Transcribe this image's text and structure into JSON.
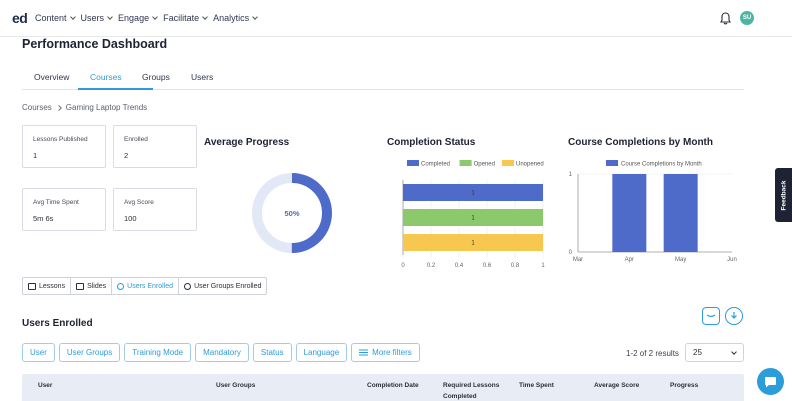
{
  "nav": {
    "logo": "ed",
    "menu": [
      "Content",
      "Users",
      "Engage",
      "Facilitate",
      "Analytics"
    ],
    "avatar_initials": "SU"
  },
  "page_title": "Performance Dashboard",
  "tabs": [
    "Overview",
    "Courses",
    "Groups",
    "Users"
  ],
  "active_tab": "Courses",
  "breadcrumb": [
    "Courses",
    "Gaming Laptop Trends"
  ],
  "stats": [
    {
      "label": "Lessons Published",
      "value": "1"
    },
    {
      "label": "Enrolled",
      "value": "2"
    },
    {
      "label": "Avg Time Spent",
      "value": "5m 6s"
    },
    {
      "label": "Avg Score",
      "value": "100"
    }
  ],
  "average_progress": {
    "title": "Average Progress",
    "label": "50%",
    "value": 0.5
  },
  "colors": {
    "accent": "#2d9cdb",
    "completed": "#4f6bc9",
    "opened": "#8cc96d",
    "unopened": "#f7c84f",
    "donut_track": "#e3e8f6"
  },
  "chart_data": [
    {
      "type": "bar",
      "orientation": "horizontal",
      "title": "Completion Status",
      "legend_position": "top",
      "series": [
        {
          "name": "Completed",
          "value": 1
        },
        {
          "name": "Opened",
          "value": 1
        },
        {
          "name": "Unopened",
          "value": 1
        }
      ],
      "xlim": [
        0,
        1
      ],
      "x_ticks": [
        "0",
        "0.2",
        "0.4",
        "0.6",
        "0.8",
        "1"
      ]
    },
    {
      "type": "bar",
      "title": "Course Completions by Month",
      "legend_position": "top",
      "series": [
        {
          "name": "Course Completions by Month",
          "values": [
            0,
            1,
            1,
            0
          ]
        }
      ],
      "categories": [
        "Mar",
        "Apr",
        "May",
        "Jun"
      ],
      "ylim": [
        0,
        1
      ],
      "y_ticks": [
        "0",
        "1"
      ]
    }
  ],
  "view_toggles": [
    "Lessons",
    "Slides",
    "Users Enrolled",
    "User Groups Enrolled"
  ],
  "active_view": "Users Enrolled",
  "users_enrolled_title": "Users Enrolled",
  "filters": [
    "User",
    "User Groups",
    "Training Mode",
    "Mandatory",
    "Status",
    "Language",
    "More filters"
  ],
  "pager": {
    "text": "1-2 of 2 results",
    "per_page": "25"
  },
  "table_headers": [
    "User",
    "User Groups",
    "Completion Date",
    "Required Lessons Completed",
    "Time Spent",
    "Average Score",
    "Progress"
  ],
  "feedback_label": "Feedback"
}
